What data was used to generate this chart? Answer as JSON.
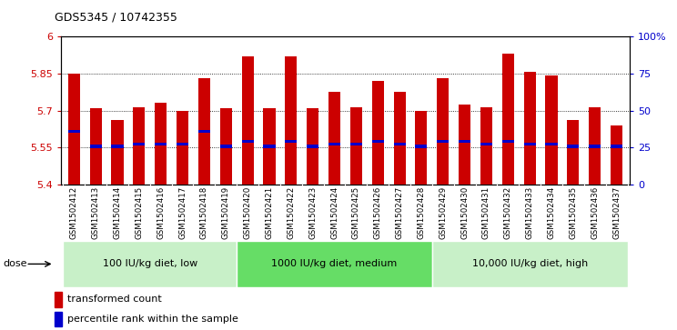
{
  "title": "GDS5345 / 10742355",
  "samples": [
    "GSM1502412",
    "GSM1502413",
    "GSM1502414",
    "GSM1502415",
    "GSM1502416",
    "GSM1502417",
    "GSM1502418",
    "GSM1502419",
    "GSM1502420",
    "GSM1502421",
    "GSM1502422",
    "GSM1502423",
    "GSM1502424",
    "GSM1502425",
    "GSM1502426",
    "GSM1502427",
    "GSM1502428",
    "GSM1502429",
    "GSM1502430",
    "GSM1502431",
    "GSM1502432",
    "GSM1502433",
    "GSM1502434",
    "GSM1502435",
    "GSM1502436",
    "GSM1502437"
  ],
  "bar_tops": [
    5.85,
    5.71,
    5.66,
    5.715,
    5.73,
    5.7,
    5.83,
    5.71,
    5.92,
    5.71,
    5.92,
    5.71,
    5.775,
    5.715,
    5.82,
    5.775,
    5.7,
    5.83,
    5.725,
    5.715,
    5.93,
    5.855,
    5.84,
    5.66,
    5.715,
    5.64
  ],
  "blue_dot_values": [
    5.615,
    5.555,
    5.555,
    5.565,
    5.565,
    5.565,
    5.615,
    5.555,
    5.575,
    5.555,
    5.575,
    5.555,
    5.565,
    5.565,
    5.575,
    5.565,
    5.555,
    5.575,
    5.575,
    5.565,
    5.575,
    5.565,
    5.565,
    5.555,
    5.555,
    5.555
  ],
  "bar_bottom": 5.4,
  "ylim_left": [
    5.4,
    6.0
  ],
  "yticks_left": [
    5.4,
    5.55,
    5.7,
    5.85,
    6.0
  ],
  "ytick_labels_left": [
    "5.4",
    "5.55",
    "5.7",
    "5.85",
    "6"
  ],
  "ylim_right": [
    0,
    100
  ],
  "yticks_right": [
    0,
    25,
    50,
    75,
    100
  ],
  "ytick_labels_right": [
    "0",
    "25",
    "50",
    "75",
    "100%"
  ],
  "groups": [
    {
      "label": "100 IU/kg diet, low",
      "start": 0,
      "end": 8
    },
    {
      "label": "1000 IU/kg diet, medium",
      "start": 8,
      "end": 17
    },
    {
      "label": "10,000 IU/kg diet, high",
      "start": 17,
      "end": 26
    }
  ],
  "group_colors": [
    "#c8f0c8",
    "#66dd66",
    "#c8f0c8"
  ],
  "bar_color": "#CC0000",
  "blue_dot_color": "#0000CC",
  "bg_color": "#FFFFFF",
  "plot_bg_color": "#FFFFFF",
  "xlabel_bg_color": "#CCCCCC",
  "legend_items": [
    {
      "label": "transformed count",
      "color": "#CC0000"
    },
    {
      "label": "percentile rank within the sample",
      "color": "#0000CC"
    }
  ]
}
